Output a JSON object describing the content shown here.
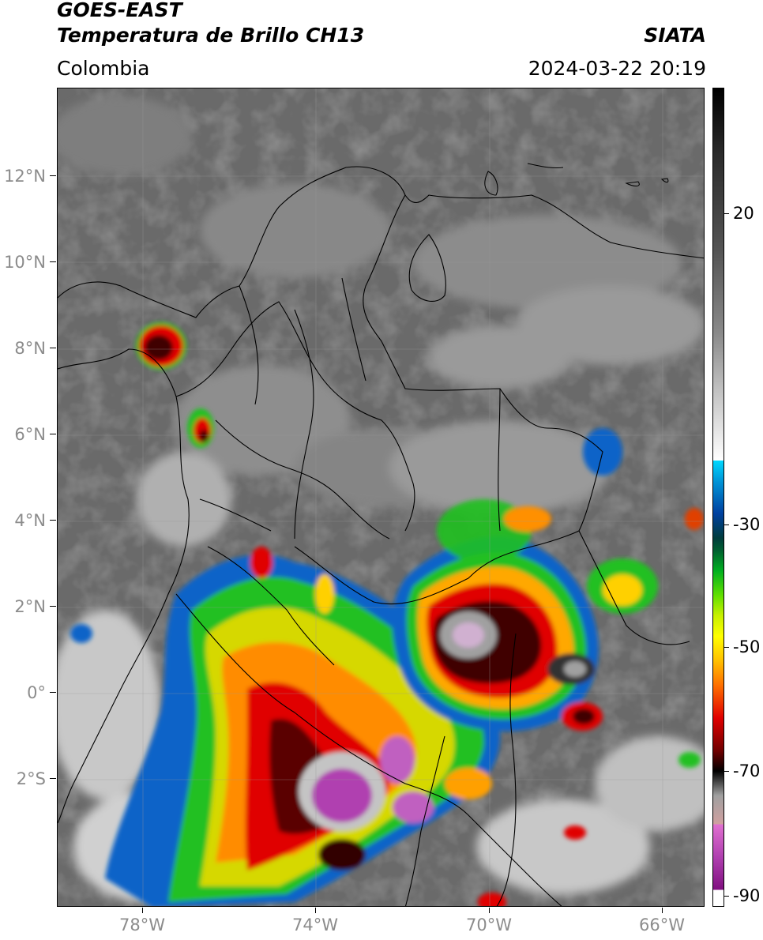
{
  "header": {
    "satellite": "GOES-EAST",
    "product": "Temperatura de Brillo CH13",
    "region": "Colombia",
    "agency": "SIATA",
    "datetime": "2024-03-22 20:19"
  },
  "axes": {
    "lat_labels": [
      "12°N",
      "10°N",
      "8°N",
      "6°N",
      "4°N",
      "2°N",
      "0°",
      "2°S"
    ],
    "lon_labels": [
      "78°W",
      "74°W",
      "70°W",
      "66°W"
    ]
  },
  "colorbar": {
    "labels": [
      "20",
      "-30",
      "-50",
      "-70",
      "-90"
    ]
  }
}
